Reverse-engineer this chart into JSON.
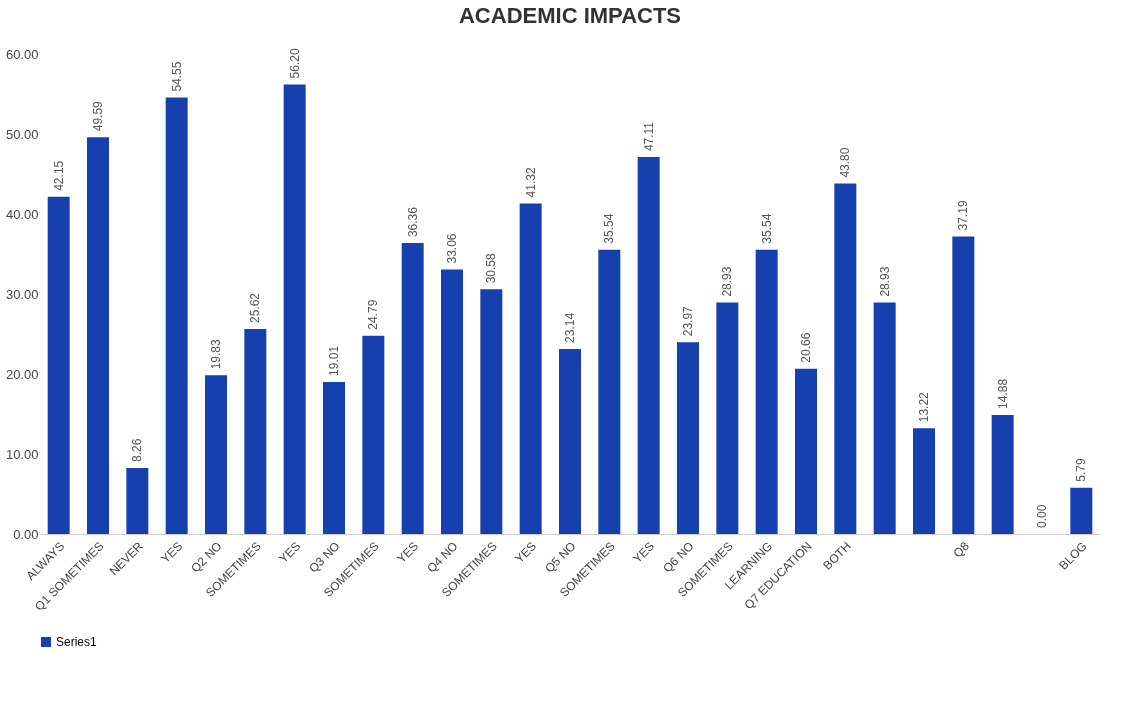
{
  "chart_data": {
    "type": "bar",
    "title": "ACADEMIC IMPACTS",
    "categories": [
      "ALWAYS",
      "Q1   SOMETIMES",
      "NEVER",
      "YES",
      "Q2   NO",
      "SOMETIMES",
      "YES",
      "Q3   NO",
      "SOMETIMES",
      "YES",
      "Q4   NO",
      "SOMETIMES",
      "YES",
      "Q5   NO",
      "SOMETIMES",
      "YES",
      "Q6   NO",
      "SOMETIMES",
      "LEARNING",
      "Q7 EDUCATION",
      "BOTH",
      null,
      null,
      "Q8",
      null,
      null,
      "BLOG"
    ],
    "series": [
      {
        "name": "Series1",
        "color": "#1540ad",
        "values": [
          42.15,
          49.59,
          8.26,
          54.55,
          19.83,
          25.62,
          56.2,
          19.01,
          24.79,
          36.36,
          33.06,
          30.58,
          41.32,
          23.14,
          35.54,
          47.11,
          23.97,
          28.93,
          35.54,
          20.66,
          43.8,
          28.93,
          13.22,
          37.19,
          14.88,
          0,
          5.79
        ]
      }
    ],
    "value_labels": [
      "42.15",
      "49.59",
      "8.26",
      "54.55",
      "19.83",
      "25.62",
      "56.20",
      "19.01",
      "24.79",
      "36.36",
      "33.06",
      "30.58",
      "41.32",
      "23.14",
      "35.54",
      "47.11",
      "23.97",
      "28.93",
      "35.54",
      "20.66",
      "43.80",
      "28.93",
      "13.22",
      "37.19",
      "14.88",
      "0.00",
      "5.79"
    ],
    "ylim": [
      0,
      60
    ],
    "yticks": [
      {
        "value": 0,
        "label": "0.00"
      },
      {
        "value": 10,
        "label": "10.00"
      },
      {
        "value": 20,
        "label": "20.00"
      },
      {
        "value": 30,
        "label": "30.00"
      },
      {
        "value": 40,
        "label": "40.00"
      },
      {
        "value": 50,
        "label": "50.00"
      },
      {
        "value": 60,
        "label": "60.00"
      }
    ],
    "legend": "bottom"
  }
}
